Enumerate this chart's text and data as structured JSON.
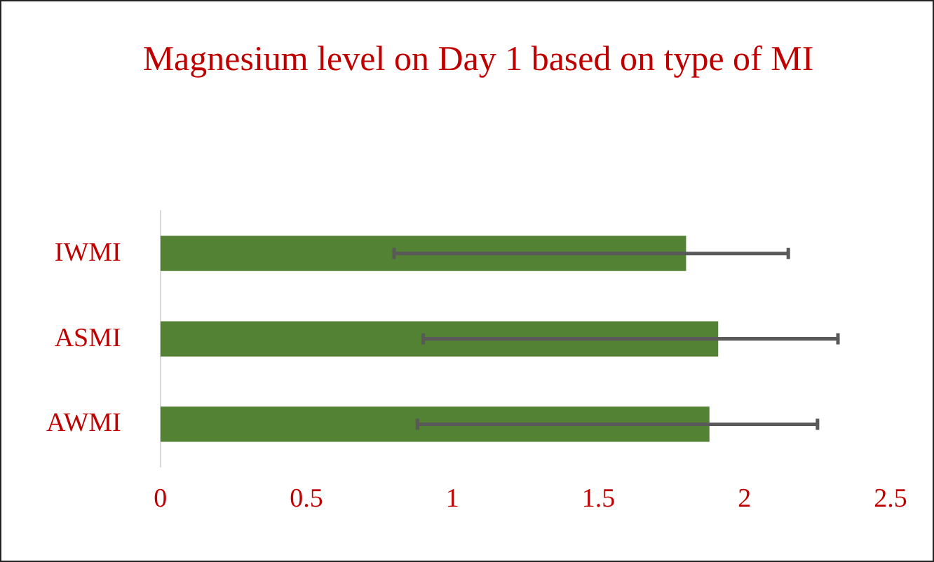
{
  "chart_data": {
    "type": "bar",
    "orientation": "horizontal",
    "title": "Magnesium level on Day 1 based on type of MI",
    "categories": [
      "IWMI",
      "ASMI",
      "AWMI"
    ],
    "values": [
      1.8,
      1.91,
      1.88
    ],
    "color": "#548235",
    "errors": [
      [
        0.8,
        2.15
      ],
      [
        0.9,
        2.32
      ],
      [
        0.88,
        2.25
      ]
    ],
    "xlim": [
      0,
      2.5
    ],
    "xticks": [
      0,
      0.5,
      1,
      1.5,
      2,
      2.5
    ],
    "grid": false,
    "legend": false
  }
}
